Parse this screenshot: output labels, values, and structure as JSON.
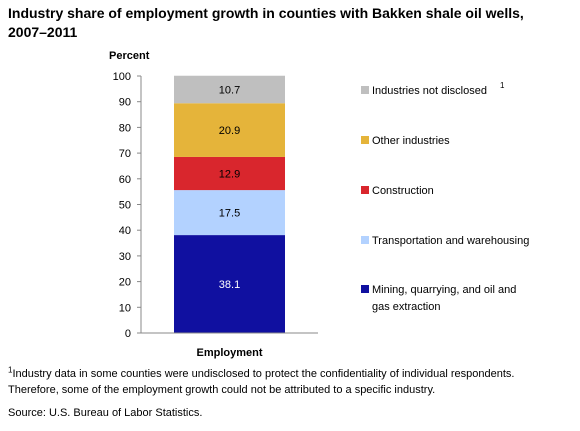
{
  "title_line1": "Industry share of employment growth in counties with Bakken shale oil wells,",
  "title_line2": "2007–2011",
  "chart_data": {
    "type": "bar",
    "stacked": true,
    "categories": [
      "Employment"
    ],
    "ylabel": "Percent",
    "ylim": [
      0,
      100
    ],
    "yticks": [
      0,
      10,
      20,
      30,
      40,
      50,
      60,
      70,
      80,
      90,
      100
    ],
    "grid": false,
    "legend_position": "right",
    "series": [
      {
        "name": "Mining, quarrying, and oil and gas extraction",
        "values": [
          38.1
        ],
        "color": "#1010a0",
        "label_color": "#ffffff"
      },
      {
        "name": "Transportation and warehousing",
        "values": [
          17.5
        ],
        "color": "#b3d2ff",
        "label_color": "#000000"
      },
      {
        "name": "Construction",
        "values": [
          12.9
        ],
        "color": "#d9262d",
        "label_color": "#000000"
      },
      {
        "name": "Other industries",
        "values": [
          20.9
        ],
        "color": "#e5b43a",
        "label_color": "#000000"
      },
      {
        "name": "Industries not disclosed",
        "values": [
          10.7
        ],
        "color": "#bfbfbf",
        "label_color": "#000000",
        "footnote_mark": "1"
      }
    ]
  },
  "footnote": {
    "mark": "1",
    "line1": "Industry data in some counties were undisclosed to protect the confidentiality of individual respondents.",
    "line2": "Therefore, some of the employment growth could not be attributed to a specific industry."
  },
  "source": "Source: U.S. Bureau of Labor Statistics."
}
